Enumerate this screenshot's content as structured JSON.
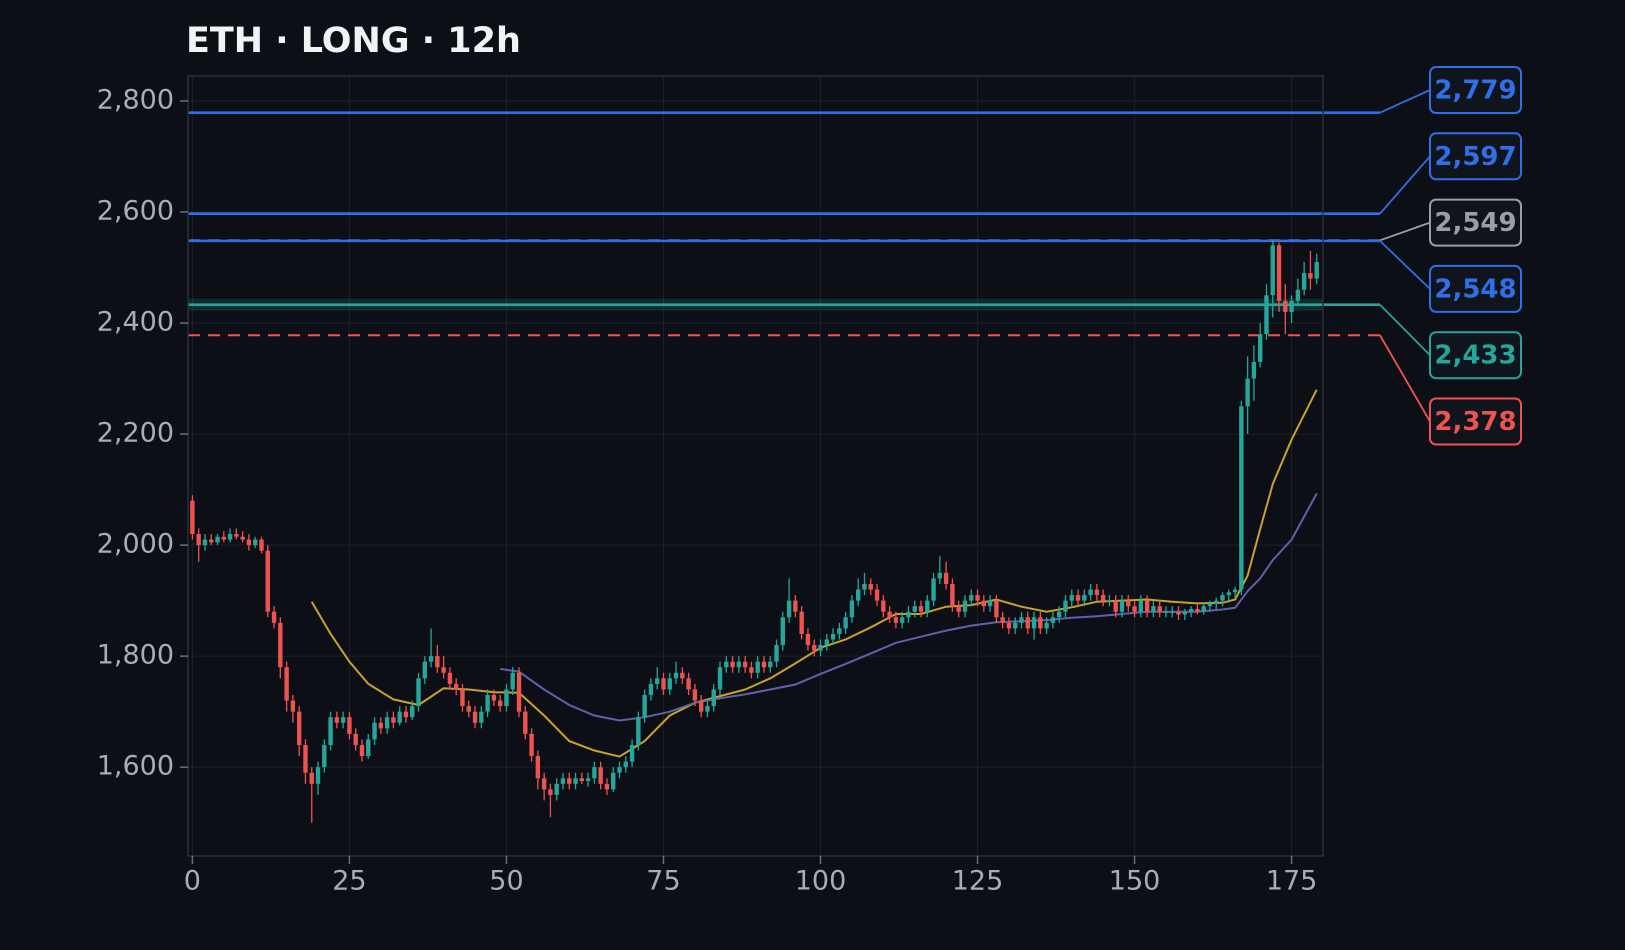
{
  "chart_data": {
    "type": "candlestick",
    "title": "ETH · LONG · 12h",
    "xlim": [
      -0.7,
      180
    ],
    "ylim": [
      1440,
      2845
    ],
    "xticks": [
      0,
      25,
      50,
      75,
      100,
      125,
      150,
      175
    ],
    "yticks": [
      {
        "value": 1600,
        "label": "1,600"
      },
      {
        "value": 1800,
        "label": "1,800"
      },
      {
        "value": 2000,
        "label": "2,000"
      },
      {
        "value": 2200,
        "label": "2,200"
      },
      {
        "value": 2400,
        "label": "2,400"
      },
      {
        "value": 2600,
        "label": "2,600"
      },
      {
        "value": 2800,
        "label": "2,800"
      }
    ],
    "grid": true,
    "up_color": "#26a69a",
    "down_color": "#ef5350",
    "open": [
      2080,
      2020,
      2000,
      2010,
      2005,
      2015,
      2010,
      2020,
      2015,
      2010,
      2000,
      2010,
      1990,
      1880,
      1860,
      1780,
      1720,
      1700,
      1640,
      1590,
      1570,
      1600,
      1640,
      1690,
      1680,
      1690,
      1660,
      1640,
      1620,
      1650,
      1680,
      1670,
      1690,
      1680,
      1700,
      1690,
      1710,
      1760,
      1790,
      1800,
      1780,
      1770,
      1750,
      1740,
      1710,
      1700,
      1680,
      1700,
      1730,
      1720,
      1710,
      1740,
      1770,
      1700,
      1660,
      1620,
      1580,
      1560,
      1550,
      1570,
      1580,
      1570,
      1580,
      1575,
      1580,
      1600,
      1570,
      1560,
      1590,
      1600,
      1610,
      1640,
      1690,
      1730,
      1750,
      1760,
      1740,
      1760,
      1770,
      1760,
      1740,
      1720,
      1700,
      1710,
      1740,
      1780,
      1790,
      1780,
      1790,
      1780,
      1770,
      1790,
      1780,
      1790,
      1820,
      1870,
      1900,
      1880,
      1840,
      1820,
      1810,
      1820,
      1830,
      1840,
      1850,
      1870,
      1900,
      1920,
      1930,
      1920,
      1900,
      1880,
      1870,
      1860,
      1870,
      1880,
      1890,
      1880,
      1900,
      1940,
      1950,
      1930,
      1890,
      1880,
      1900,
      1910,
      1900,
      1890,
      1900,
      1870,
      1860,
      1850,
      1860,
      1870,
      1850,
      1870,
      1850,
      1860,
      1870,
      1880,
      1900,
      1910,
      1900,
      1910,
      1920,
      1910,
      1900,
      1900,
      1880,
      1900,
      1890,
      1880,
      1900,
      1880,
      1890,
      1880,
      1880,
      1880,
      1875,
      1880,
      1885,
      1880,
      1890,
      1895,
      1900,
      1910,
      1915,
      1920,
      2250,
      2300,
      2330,
      2380,
      2450,
      2540,
      2440,
      2420,
      2440,
      2460,
      2490,
      2480
    ],
    "high": [
      2090,
      2030,
      2020,
      2020,
      2020,
      2025,
      2030,
      2030,
      2025,
      2020,
      2015,
      2015,
      2000,
      1890,
      1870,
      1790,
      1730,
      1710,
      1650,
      1600,
      1610,
      1650,
      1700,
      1700,
      1700,
      1700,
      1670,
      1650,
      1660,
      1690,
      1690,
      1700,
      1700,
      1710,
      1710,
      1720,
      1770,
      1800,
      1850,
      1820,
      1800,
      1780,
      1760,
      1750,
      1720,
      1710,
      1710,
      1740,
      1740,
      1730,
      1750,
      1780,
      1780,
      1710,
      1670,
      1630,
      1590,
      1570,
      1580,
      1590,
      1590,
      1590,
      1590,
      1590,
      1610,
      1610,
      1580,
      1600,
      1610,
      1620,
      1650,
      1700,
      1740,
      1760,
      1780,
      1770,
      1770,
      1790,
      1780,
      1770,
      1750,
      1730,
      1720,
      1750,
      1790,
      1800,
      1800,
      1800,
      1800,
      1790,
      1800,
      1800,
      1800,
      1830,
      1880,
      1940,
      1910,
      1890,
      1850,
      1830,
      1830,
      1840,
      1850,
      1860,
      1880,
      1910,
      1940,
      1950,
      1940,
      1930,
      1910,
      1890,
      1880,
      1880,
      1890,
      1900,
      1900,
      1910,
      1950,
      1980,
      1970,
      1940,
      1900,
      1910,
      1920,
      1920,
      1910,
      1910,
      1910,
      1880,
      1870,
      1870,
      1880,
      1880,
      1880,
      1880,
      1870,
      1880,
      1890,
      1910,
      1920,
      1920,
      1920,
      1930,
      1930,
      1920,
      1910,
      1910,
      1910,
      1910,
      1900,
      1910,
      1910,
      1900,
      1900,
      1890,
      1890,
      1890,
      1885,
      1890,
      1895,
      1895,
      1900,
      1905,
      1915,
      1920,
      1925,
      2260,
      2340,
      2360,
      2400,
      2470,
      2550,
      2545,
      2470,
      2450,
      2480,
      2510,
      2530,
      2525
    ],
    "low": [
      2010,
      1970,
      1990,
      2000,
      2000,
      2005,
      2005,
      2010,
      2005,
      1990,
      1995,
      1985,
      1870,
      1850,
      1760,
      1700,
      1680,
      1620,
      1570,
      1500,
      1550,
      1590,
      1630,
      1670,
      1670,
      1650,
      1630,
      1610,
      1615,
      1640,
      1660,
      1660,
      1670,
      1675,
      1680,
      1685,
      1700,
      1750,
      1780,
      1770,
      1760,
      1740,
      1730,
      1700,
      1690,
      1670,
      1670,
      1690,
      1710,
      1700,
      1700,
      1730,
      1690,
      1650,
      1610,
      1560,
      1540,
      1510,
      1540,
      1560,
      1560,
      1560,
      1570,
      1565,
      1570,
      1560,
      1550,
      1555,
      1580,
      1590,
      1600,
      1630,
      1680,
      1720,
      1740,
      1730,
      1730,
      1750,
      1750,
      1730,
      1710,
      1690,
      1690,
      1700,
      1730,
      1770,
      1770,
      1770,
      1770,
      1760,
      1760,
      1770,
      1770,
      1780,
      1810,
      1860,
      1870,
      1830,
      1810,
      1800,
      1800,
      1810,
      1820,
      1830,
      1840,
      1860,
      1890,
      1910,
      1910,
      1890,
      1870,
      1860,
      1850,
      1850,
      1860,
      1870,
      1870,
      1870,
      1890,
      1930,
      1920,
      1880,
      1870,
      1870,
      1890,
      1890,
      1880,
      1880,
      1860,
      1850,
      1840,
      1840,
      1850,
      1840,
      1830,
      1840,
      1840,
      1850,
      1860,
      1870,
      1890,
      1890,
      1890,
      1900,
      1900,
      1890,
      1890,
      1870,
      1870,
      1880,
      1870,
      1870,
      1870,
      1870,
      1870,
      1870,
      1870,
      1865,
      1865,
      1870,
      1875,
      1875,
      1880,
      1885,
      1890,
      1900,
      1905,
      1910,
      2200,
      2260,
      2320,
      2370,
      2410,
      2420,
      2380,
      2400,
      2430,
      2450,
      2460,
      2470
    ],
    "close": [
      2020,
      2000,
      2010,
      2005,
      2015,
      2010,
      2020,
      2015,
      2010,
      2000,
      2010,
      1990,
      1880,
      1860,
      1780,
      1720,
      1700,
      1640,
      1590,
      1570,
      1600,
      1640,
      1690,
      1680,
      1690,
      1660,
      1640,
      1620,
      1650,
      1680,
      1670,
      1690,
      1680,
      1700,
      1690,
      1710,
      1760,
      1790,
      1800,
      1780,
      1770,
      1750,
      1740,
      1710,
      1700,
      1680,
      1700,
      1730,
      1720,
      1710,
      1740,
      1770,
      1700,
      1660,
      1620,
      1580,
      1560,
      1550,
      1570,
      1580,
      1570,
      1580,
      1575,
      1580,
      1600,
      1570,
      1560,
      1590,
      1600,
      1610,
      1640,
      1690,
      1730,
      1750,
      1760,
      1740,
      1760,
      1770,
      1760,
      1740,
      1720,
      1700,
      1710,
      1740,
      1780,
      1790,
      1780,
      1790,
      1780,
      1770,
      1790,
      1780,
      1790,
      1820,
      1870,
      1900,
      1880,
      1840,
      1820,
      1810,
      1820,
      1830,
      1840,
      1850,
      1870,
      1900,
      1920,
      1930,
      1920,
      1900,
      1880,
      1870,
      1860,
      1870,
      1880,
      1890,
      1880,
      1900,
      1940,
      1950,
      1930,
      1890,
      1880,
      1900,
      1910,
      1900,
      1890,
      1900,
      1870,
      1860,
      1850,
      1860,
      1870,
      1850,
      1870,
      1850,
      1860,
      1870,
      1880,
      1900,
      1910,
      1900,
      1910,
      1920,
      1910,
      1900,
      1900,
      1880,
      1900,
      1890,
      1880,
      1900,
      1880,
      1890,
      1880,
      1880,
      1880,
      1875,
      1880,
      1885,
      1880,
      1890,
      1895,
      1900,
      1910,
      1915,
      1920,
      2250,
      2300,
      2330,
      2380,
      2450,
      2540,
      2440,
      2420,
      2440,
      2460,
      2490,
      2480,
      2510
    ],
    "lines": [
      {
        "color": "#c9a227",
        "x": [
          19,
          22,
          25,
          28,
          32,
          36,
          40,
          44,
          48,
          52,
          56,
          60,
          64,
          68,
          72,
          76,
          80,
          84,
          88,
          92,
          96,
          100,
          104,
          108,
          112,
          116,
          120,
          124,
          128,
          132,
          136,
          140,
          144,
          148,
          152,
          156,
          160,
          164,
          166,
          168,
          170,
          172,
          175,
          179
        ],
        "values": [
          1898,
          1840,
          1790,
          1750,
          1722,
          1712,
          1742,
          1740,
          1735,
          1734,
          1693,
          1647,
          1630,
          1619,
          1647,
          1693,
          1716,
          1728,
          1740,
          1760,
          1787,
          1815,
          1830,
          1852,
          1876,
          1876,
          1889,
          1892,
          1902,
          1889,
          1880,
          1888,
          1898,
          1900,
          1902,
          1898,
          1895,
          1896,
          1902,
          1945,
          2029,
          2110,
          2190,
          2280
        ]
      },
      {
        "color": "#5c63a8",
        "x": [
          49,
          52,
          56,
          60,
          64,
          68,
          72,
          76,
          80,
          84,
          88,
          92,
          96,
          100,
          104,
          108,
          112,
          116,
          120,
          124,
          128,
          132,
          136,
          140,
          144,
          148,
          152,
          156,
          160,
          164,
          166,
          168,
          170,
          172,
          175,
          179
        ],
        "values": [
          1777,
          1772,
          1740,
          1712,
          1693,
          1684,
          1690,
          1700,
          1716,
          1724,
          1731,
          1740,
          1749,
          1768,
          1786,
          1805,
          1824,
          1835,
          1846,
          1855,
          1861,
          1863,
          1865,
          1869,
          1872,
          1876,
          1880,
          1880,
          1880,
          1884,
          1887,
          1917,
          1940,
          1973,
          2010,
          2093
        ]
      }
    ],
    "band": {
      "low": 2422,
      "high": 2444,
      "color": "#26a69a"
    },
    "levels": [
      {
        "value": 2779,
        "label": "2,779",
        "color": "#2f6fe8",
        "dashed": false
      },
      {
        "value": 2597,
        "label": "2,597",
        "color": "#2f6fe8",
        "dashed": false
      },
      {
        "value": 2549,
        "label": "2,549",
        "color": "#9a9ea6",
        "dashed": true
      },
      {
        "value": 2548,
        "label": "2,548",
        "color": "#2f6fe8",
        "dashed": false
      },
      {
        "value": 2433,
        "label": "2,433",
        "color": "#26a69a",
        "dashed": false
      },
      {
        "value": 2378,
        "label": "2,378",
        "color": "#ef5350",
        "dashed": true
      }
    ]
  }
}
